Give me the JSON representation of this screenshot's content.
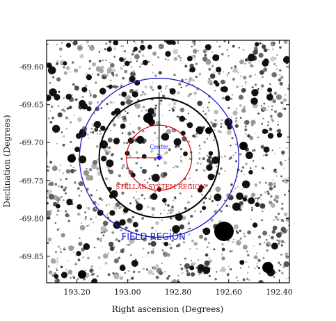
{
  "chart_data": {
    "type": "scatter",
    "xlabel": "Right ascension (Degrees)",
    "ylabel": "Declination (Degrees)",
    "xlim": [
      193.32,
      192.36
    ],
    "ylim": [
      -69.885,
      -69.565
    ],
    "x_ticks": [
      193.2,
      193.0,
      192.8,
      192.6,
      192.4
    ],
    "x_tick_labels": [
      "193.20",
      "193.00",
      "192.80",
      "192.60",
      "192.40"
    ],
    "y_ticks": [
      -69.6,
      -69.65,
      -69.7,
      -69.75,
      -69.8,
      -69.85
    ],
    "y_tick_labels": [
      "-69.60",
      "-69.65",
      "-69.70",
      "-69.75",
      "-69.80",
      "-69.85"
    ],
    "center": {
      "ra": 192.875,
      "dec": -69.72,
      "label": "Center"
    },
    "regions": [
      {
        "name": "stellar-system-circle",
        "label": "STELLAR SYSTEM REGION",
        "radius_dec": 0.043,
        "color": "#d01010"
      },
      {
        "name": "inner-field-boundary-circle",
        "label": "",
        "radius_dec": 0.079,
        "color": "#000000"
      },
      {
        "name": "field-circle",
        "label": "FIELD REGION",
        "radius_dec": 0.105,
        "color": "#1a1acc"
      }
    ],
    "background": "inverted grayscale star field",
    "colors": {
      "red": "#d01010",
      "blue": "#1a1acc",
      "center_marker": "#1a1aff",
      "frame": "#000000"
    }
  }
}
